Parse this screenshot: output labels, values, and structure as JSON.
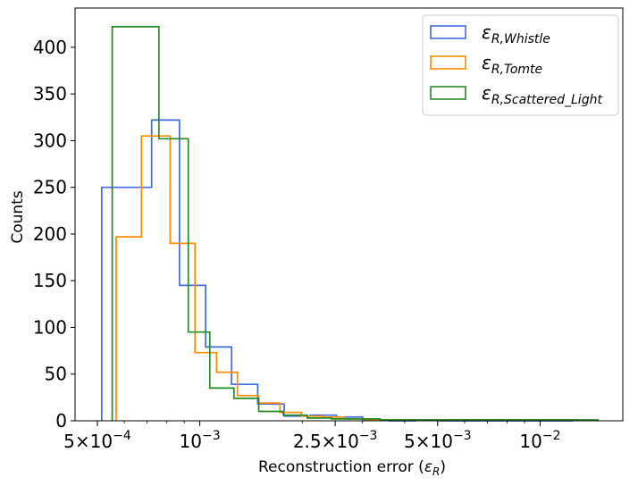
{
  "chart_data": {
    "type": "histogram",
    "title": "",
    "xlabel": "Reconstruction error (ε_R)",
    "xlabel_text": "Reconstruction error (",
    "xlabel_symbol": "ε",
    "xlabel_sub": "R",
    "xlabel_close": ")",
    "ylabel": "Counts",
    "xscale": "log",
    "xlim": [
      0.00043,
      0.0175
    ],
    "ylim": [
      0,
      442
    ],
    "yticks": [
      0,
      50,
      100,
      150,
      200,
      250,
      300,
      350,
      400
    ],
    "xticks": [
      {
        "value": 0.0005,
        "mantissa": "5",
        "exp": "−4",
        "has_mantissa": true
      },
      {
        "value": 0.001,
        "mantissa": "",
        "exp": "−3",
        "has_mantissa": false
      },
      {
        "value": 0.0025,
        "mantissa": "2.5",
        "exp": "−3",
        "has_mantissa": true
      },
      {
        "value": 0.005,
        "mantissa": "5",
        "exp": "−3",
        "has_mantissa": true
      },
      {
        "value": 0.01,
        "mantissa": "",
        "exp": "−2",
        "has_mantissa": false
      }
    ],
    "legend_position": "upper right",
    "series": [
      {
        "name": "ε_R,Whistle",
        "symbol": "ε",
        "subscript": "R,Whistle",
        "color": "#4169e1",
        "edges": [
          0.000515,
          0.000722,
          0.000872,
          0.00104,
          0.00124,
          0.00148,
          0.00177,
          0.00211,
          0.00252,
          0.00301,
          0.0036,
          0.0043,
          0.0051,
          0.0061,
          0.0073,
          0.0087,
          0.0104,
          0.0125
        ],
        "counts": [
          250,
          322,
          145,
          79,
          39,
          18,
          5,
          6,
          4,
          1,
          0,
          1,
          0,
          0,
          0,
          0,
          0
        ]
      },
      {
        "name": "ε_R,Tomte",
        "symbol": "ε",
        "subscript": "R,Tomte",
        "color": "#ff8c00",
        "edges": [
          0.000568,
          0.000674,
          0.000818,
          0.000968,
          0.00112,
          0.00129,
          0.00149,
          0.00172,
          0.00199,
          0.0023,
          0.00266,
          0.00307,
          0.00355,
          0.0041,
          0.0047,
          0.0054,
          0.0063,
          0.0073,
          0.0084,
          0.0097,
          0.0112,
          0.0131
        ],
        "counts": [
          197,
          305,
          190,
          73,
          52,
          27,
          19,
          9,
          5,
          4,
          2,
          1,
          1,
          1,
          1,
          1,
          1,
          1,
          1,
          1,
          1
        ]
      },
      {
        "name": "ε_R,Scattered_Light",
        "symbol": "ε",
        "subscript": "R,Scattered_Light",
        "color": "#228b22",
        "edges": [
          0.000553,
          0.000758,
          0.000925,
          0.00107,
          0.00126,
          0.00149,
          0.00176,
          0.00207,
          0.00244,
          0.00287,
          0.00339,
          0.004,
          0.0047,
          0.0055,
          0.0065,
          0.0077,
          0.0091,
          0.0107,
          0.0126,
          0.0148
        ],
        "counts": [
          422,
          302,
          95,
          35,
          24,
          10,
          6,
          3,
          2,
          2,
          1,
          1,
          1,
          1,
          1,
          1,
          1,
          1,
          1
        ]
      }
    ]
  }
}
